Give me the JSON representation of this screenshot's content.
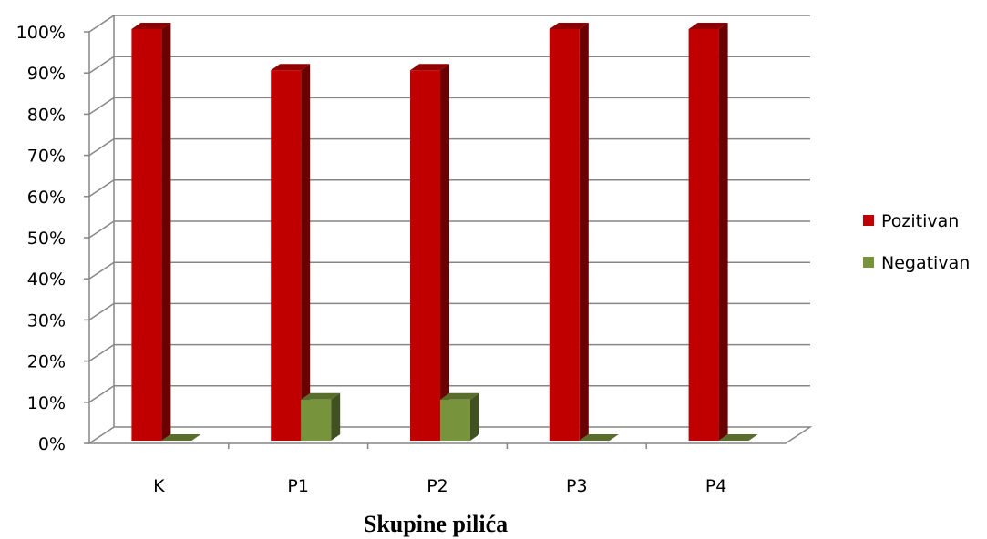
{
  "chart_data": {
    "type": "bar",
    "title": "",
    "xlabel": "Skupine pilića",
    "ylabel": "",
    "categories": [
      "K",
      "P1",
      "P2",
      "P3",
      "P4"
    ],
    "series": [
      {
        "name": "Pozitivan",
        "values": [
          100,
          90,
          90,
          100,
          100
        ],
        "color": "#c00000"
      },
      {
        "name": "Negativan",
        "values": [
          0,
          10,
          10,
          0,
          0
        ],
        "color": "#77933c"
      }
    ],
    "ylim": [
      0,
      100
    ],
    "yticks": [
      "0%",
      "10%",
      "20%",
      "30%",
      "40%",
      "50%",
      "60%",
      "70%",
      "80%",
      "90%",
      "100%"
    ],
    "grid": true,
    "legend_position": "right",
    "style": "3d-clustered-column"
  }
}
